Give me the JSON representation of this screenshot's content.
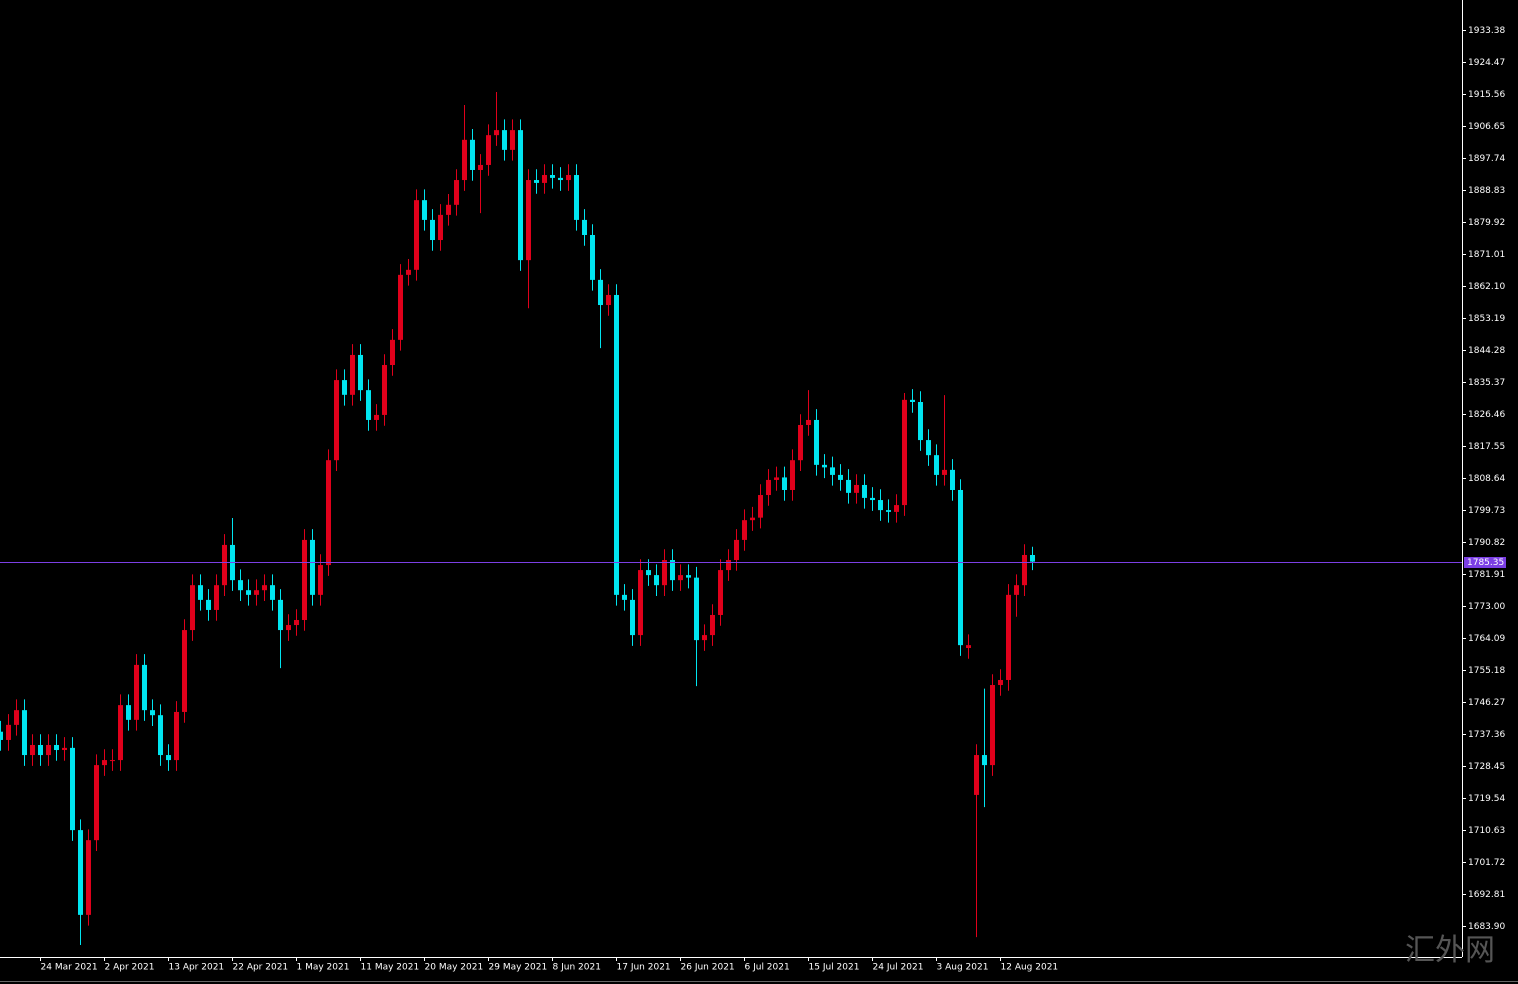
{
  "chart_data": {
    "type": "candlestick",
    "categories": [
      null,
      null,
      null,
      null,
      null,
      "24 Mar 2021",
      null,
      null,
      null,
      null,
      null,
      null,
      null,
      "2 Apr 2021",
      null,
      null,
      null,
      null,
      null,
      null,
      null,
      "13 Apr 2021",
      null,
      null,
      null,
      null,
      null,
      null,
      null,
      "22 Apr 2021",
      null,
      null,
      null,
      null,
      null,
      null,
      null,
      "1 May 2021",
      null,
      null,
      null,
      null,
      null,
      null,
      null,
      "11 May 2021",
      null,
      null,
      null,
      null,
      null,
      null,
      null,
      "20 May 2021",
      null,
      null,
      null,
      null,
      null,
      null,
      null,
      "29 May 2021",
      null,
      null,
      null,
      null,
      null,
      null,
      null,
      "8 Jun 2021",
      null,
      null,
      null,
      null,
      null,
      null,
      null,
      "17 Jun 2021",
      null,
      null,
      null,
      null,
      null,
      null,
      null,
      "26 Jun 2021",
      null,
      null,
      null,
      null,
      null,
      null,
      null,
      "6 Jul 2021",
      null,
      null,
      null,
      null,
      null,
      null,
      null,
      "15 Jul 2021",
      null,
      null,
      null,
      null,
      null,
      null,
      null,
      "24 Jul 2021",
      null,
      null,
      null,
      null,
      null,
      null,
      null,
      "3 Aug 2021",
      null,
      null,
      null,
      null,
      null,
      null,
      null,
      "12 Aug 2021",
      null,
      null,
      null,
      null
    ],
    "open": [
      1738.0,
      1735.7,
      1739.9,
      1744.0,
      1731.5,
      1734.3,
      1731.5,
      1734.3,
      1732.9,
      1733.5,
      1710.6,
      1687.0,
      1707.8,
      1728.7,
      1730.1,
      1730.1,
      1745.4,
      1741.3,
      1756.6,
      1744.0,
      1742.6,
      1731.5,
      1730.1,
      1743.5,
      1766.3,
      1778.8,
      1774.7,
      1771.9,
      1778.8,
      1790.0,
      1780.2,
      1777.4,
      1776.1,
      1777.4,
      1778.8,
      1774.7,
      1766.3,
      1767.7,
      1769.1,
      1791.4,
      1776.1,
      1784.4,
      1813.6,
      1835.9,
      1831.8,
      1842.9,
      1833.1,
      1824.8,
      1826.2,
      1840.1,
      1847.1,
      1865.2,
      1866.6,
      1886.0,
      1880.5,
      1874.9,
      1881.9,
      1884.7,
      1891.6,
      1902.8,
      1894.4,
      1895.8,
      1904.1,
      1905.5,
      1900.0,
      1905.5,
      1869.3,
      1891.6,
      1890.8,
      1893.0,
      1892.2,
      1891.6,
      1893.0,
      1880.5,
      1876.3,
      1863.8,
      1856.8,
      1859.6,
      1776.1,
      1774.7,
      1764.9,
      1783.0,
      1781.6,
      1778.8,
      1785.8,
      1780.2,
      1781.6,
      1780.9,
      1763.5,
      1764.9,
      1770.5,
      1783.0,
      1785.8,
      1791.4,
      1796.9,
      1797.6,
      1803.9,
      1808.1,
      1808.8,
      1805.3,
      1813.6,
      1823.4,
      1824.8,
      1812.3,
      1811.6,
      1809.5,
      1808.1,
      1804.5,
      1806.7,
      1803.1,
      1802.5,
      1799.7,
      1799.2,
      1801.1,
      1830.4,
      1829.8,
      1819.2,
      1815.0,
      1809.5,
      1810.9,
      1805.3,
      1761.3,
      1720.4,
      1731.5,
      1728.7,
      1751.0,
      1752.4,
      1776.1,
      1778.8,
      1787.2
    ],
    "high": [
      1741.0,
      1742.9,
      1747.0,
      1747.0,
      1737.3,
      1737.3,
      1737.3,
      1737.3,
      1736.5,
      1736.5,
      1713.6,
      1710.8,
      1731.7,
      1733.1,
      1733.1,
      1748.4,
      1748.4,
      1759.6,
      1759.6,
      1747.0,
      1745.6,
      1734.5,
      1746.5,
      1769.3,
      1781.8,
      1781.8,
      1777.7,
      1781.8,
      1793.0,
      1797.5,
      1783.2,
      1780.4,
      1780.4,
      1781.8,
      1781.8,
      1777.7,
      1770.7,
      1772.1,
      1794.4,
      1794.4,
      1787.4,
      1816.6,
      1838.9,
      1838.9,
      1845.9,
      1845.9,
      1836.1,
      1829.2,
      1843.1,
      1850.1,
      1868.2,
      1869.6,
      1889.0,
      1889.0,
      1883.5,
      1884.9,
      1887.7,
      1894.6,
      1912.5,
      1905.8,
      1898.8,
      1907.1,
      1916.1,
      1908.5,
      1908.5,
      1908.5,
      1894.6,
      1894.6,
      1896.0,
      1896.0,
      1895.2,
      1896.0,
      1896.0,
      1883.5,
      1879.3,
      1866.8,
      1862.6,
      1862.6,
      1779.1,
      1777.7,
      1786.0,
      1786.0,
      1784.6,
      1788.8,
      1788.8,
      1784.6,
      1784.6,
      1783.9,
      1767.9,
      1773.5,
      1786.0,
      1788.8,
      1794.4,
      1799.9,
      1800.6,
      1806.9,
      1811.1,
      1811.8,
      1811.8,
      1816.6,
      1826.4,
      1833.1,
      1827.8,
      1815.3,
      1814.6,
      1812.5,
      1811.1,
      1809.7,
      1809.7,
      1806.1,
      1805.5,
      1802.7,
      1804.1,
      1832.3,
      1833.4,
      1832.8,
      1822.2,
      1818.0,
      1831.7,
      1813.9,
      1808.3,
      1765.1,
      1734.5,
      1750.0,
      1754.0,
      1755.4,
      1779.1,
      1781.8,
      1790.2,
      1789.5
    ],
    "low": [
      1732.7,
      1732.7,
      1736.9,
      1728.5,
      1728.5,
      1728.5,
      1728.5,
      1729.9,
      1729.9,
      1707.6,
      1678.6,
      1684.0,
      1704.8,
      1725.7,
      1727.1,
      1727.1,
      1738.3,
      1738.3,
      1741.0,
      1739.6,
      1728.5,
      1727.1,
      1727.1,
      1740.5,
      1763.3,
      1771.7,
      1768.9,
      1768.9,
      1775.8,
      1777.2,
      1774.4,
      1773.1,
      1773.1,
      1774.4,
      1771.7,
      1755.7,
      1763.3,
      1764.7,
      1766.1,
      1773.1,
      1773.1,
      1781.4,
      1810.6,
      1828.8,
      1828.8,
      1830.1,
      1821.8,
      1821.8,
      1823.2,
      1837.1,
      1844.1,
      1862.2,
      1863.6,
      1877.5,
      1871.9,
      1871.9,
      1878.9,
      1881.7,
      1888.6,
      1891.4,
      1882.4,
      1892.8,
      1901.1,
      1897.0,
      1897.0,
      1866.3,
      1855.9,
      1887.8,
      1887.8,
      1889.2,
      1888.6,
      1888.6,
      1877.5,
      1873.3,
      1860.8,
      1844.8,
      1853.8,
      1773.1,
      1771.7,
      1761.9,
      1761.9,
      1778.6,
      1775.8,
      1775.8,
      1777.2,
      1777.2,
      1777.9,
      1750.7,
      1760.5,
      1761.9,
      1767.5,
      1780.0,
      1782.8,
      1788.4,
      1793.9,
      1794.6,
      1800.9,
      1805.1,
      1802.3,
      1802.3,
      1810.6,
      1820.4,
      1809.3,
      1808.6,
      1806.5,
      1805.1,
      1801.5,
      1801.5,
      1800.1,
      1799.5,
      1796.7,
      1796.2,
      1796.2,
      1798.1,
      1826.8,
      1816.2,
      1812.0,
      1806.5,
      1806.5,
      1802.3,
      1759.1,
      1758.3,
      1680.8,
      1717.0,
      1725.7,
      1748.0,
      1749.4,
      1770.0,
      1775.8,
      1783.0
    ],
    "close": [
      1735.7,
      1739.9,
      1744.0,
      1731.5,
      1734.3,
      1731.5,
      1734.3,
      1732.9,
      1733.5,
      1710.6,
      1687.0,
      1707.8,
      1728.7,
      1730.1,
      1730.1,
      1745.4,
      1741.3,
      1756.6,
      1744.0,
      1742.6,
      1731.5,
      1730.1,
      1743.5,
      1766.3,
      1778.8,
      1774.7,
      1771.9,
      1778.8,
      1790.0,
      1780.2,
      1777.4,
      1776.1,
      1777.4,
      1778.8,
      1774.7,
      1766.3,
      1767.7,
      1769.1,
      1791.4,
      1776.1,
      1784.4,
      1813.6,
      1835.9,
      1831.8,
      1842.9,
      1833.1,
      1824.8,
      1826.2,
      1840.1,
      1847.1,
      1865.2,
      1866.6,
      1886.0,
      1880.5,
      1874.9,
      1881.9,
      1884.7,
      1891.6,
      1902.8,
      1894.4,
      1895.8,
      1904.1,
      1905.5,
      1900.0,
      1905.5,
      1869.3,
      1891.6,
      1890.8,
      1893.0,
      1892.2,
      1891.6,
      1893.0,
      1880.5,
      1876.3,
      1863.8,
      1856.8,
      1859.6,
      1776.1,
      1774.7,
      1764.9,
      1783.0,
      1781.6,
      1778.8,
      1785.8,
      1780.2,
      1781.6,
      1780.9,
      1763.5,
      1764.9,
      1770.5,
      1783.0,
      1785.8,
      1791.4,
      1796.9,
      1797.6,
      1803.9,
      1808.1,
      1808.8,
      1805.3,
      1813.6,
      1823.4,
      1824.8,
      1812.3,
      1811.6,
      1809.5,
      1808.1,
      1804.5,
      1806.7,
      1803.1,
      1802.5,
      1799.7,
      1799.2,
      1801.1,
      1830.4,
      1829.8,
      1819.2,
      1815.0,
      1809.5,
      1810.9,
      1805.3,
      1762.1,
      1762.1,
      1731.5,
      1728.7,
      1751.0,
      1752.4,
      1776.1,
      1778.8,
      1787.2,
      1785.35
    ],
    "up_color": "#e0001b",
    "down_color": "#00e5f0",
    "ylim": [
      1675.27,
      1941.73
    ],
    "yticks": [
      1933.38,
      1924.47,
      1915.56,
      1906.65,
      1897.74,
      1888.83,
      1879.92,
      1871.01,
      {
        "value": 1862.1,
        "label": "1862.10"
      },
      1853.19,
      1844.28,
      1835.37,
      1826.46,
      1817.55,
      1808.64,
      1799.73,
      1790.82,
      1781.91,
      {
        "value": 1773,
        "label": "1773.00"
      },
      1764.09,
      1755.18,
      1746.27,
      1737.36,
      1728.45,
      1719.54,
      1710.63,
      1701.72,
      1692.81,
      {
        "value": 1683.9,
        "label": "1683.90"
      }
    ],
    "current_price": 1785.35,
    "current_price_color": "#7b3fe4",
    "grid": false,
    "watermark": "汇外网"
  }
}
